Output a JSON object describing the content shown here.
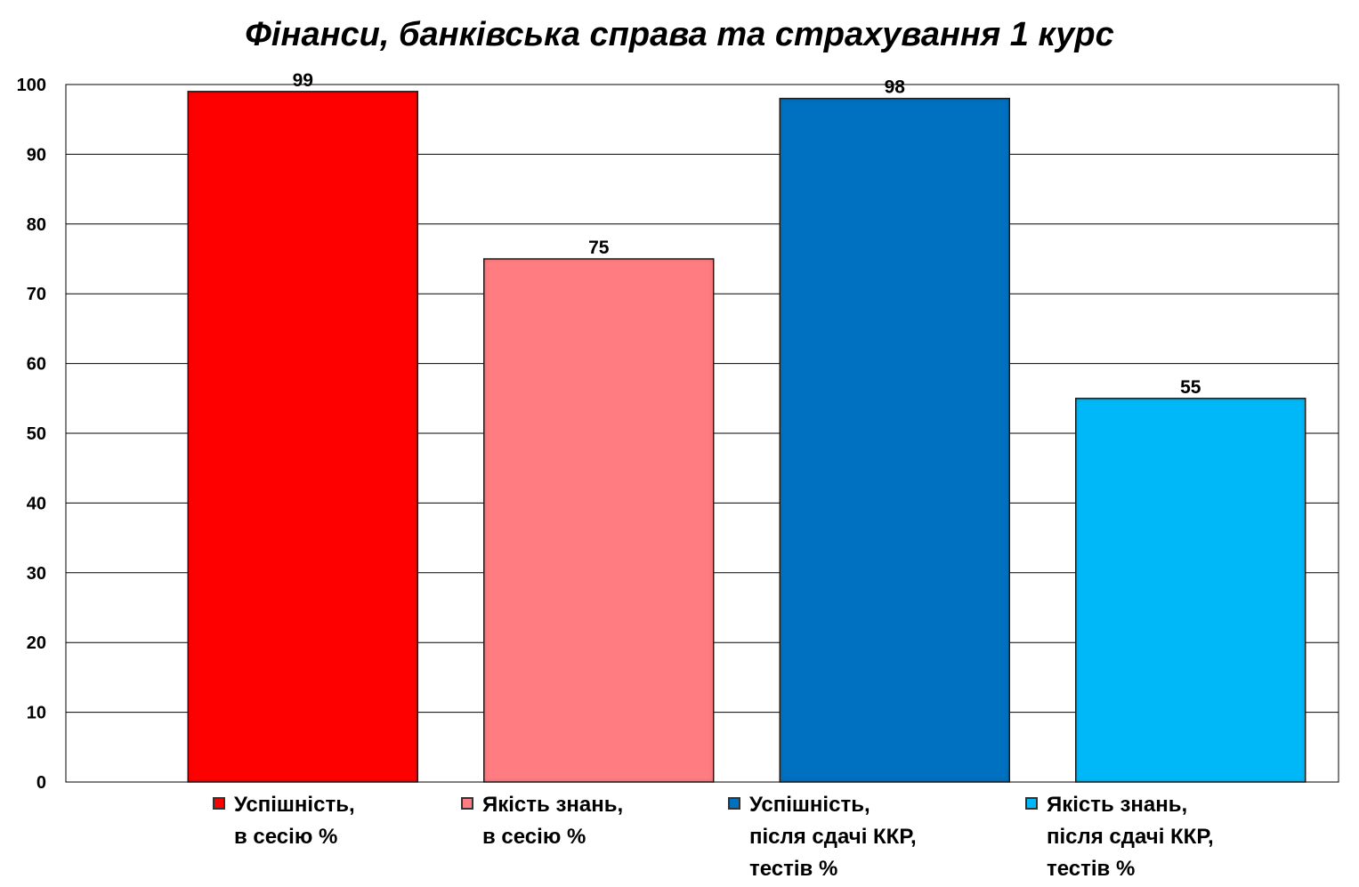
{
  "chart_data": {
    "type": "bar",
    "title": "Фінанси, банківська справа та страхування 1 курс",
    "xlabel": "",
    "ylabel": "",
    "ylim": [
      0,
      100
    ],
    "yticks": [
      0,
      10,
      20,
      30,
      40,
      50,
      60,
      70,
      80,
      90,
      100
    ],
    "grid": true,
    "legend_position": "bottom",
    "series": [
      {
        "name": "Успішність,\nв сесію %",
        "values": [
          99
        ],
        "color": "#ff0000"
      },
      {
        "name": "Якість знань,\nв сесію %",
        "values": [
          75
        ],
        "color": "#ff7c80"
      },
      {
        "name": "Успішність,\nпісля сдачі ККР,\nтестів %",
        "values": [
          98
        ],
        "color": "#0070c0"
      },
      {
        "name": "Якість знань,\nпісля сдачі ККР,\nтестів %",
        "values": [
          55
        ],
        "color": "#00b8f8"
      }
    ]
  }
}
